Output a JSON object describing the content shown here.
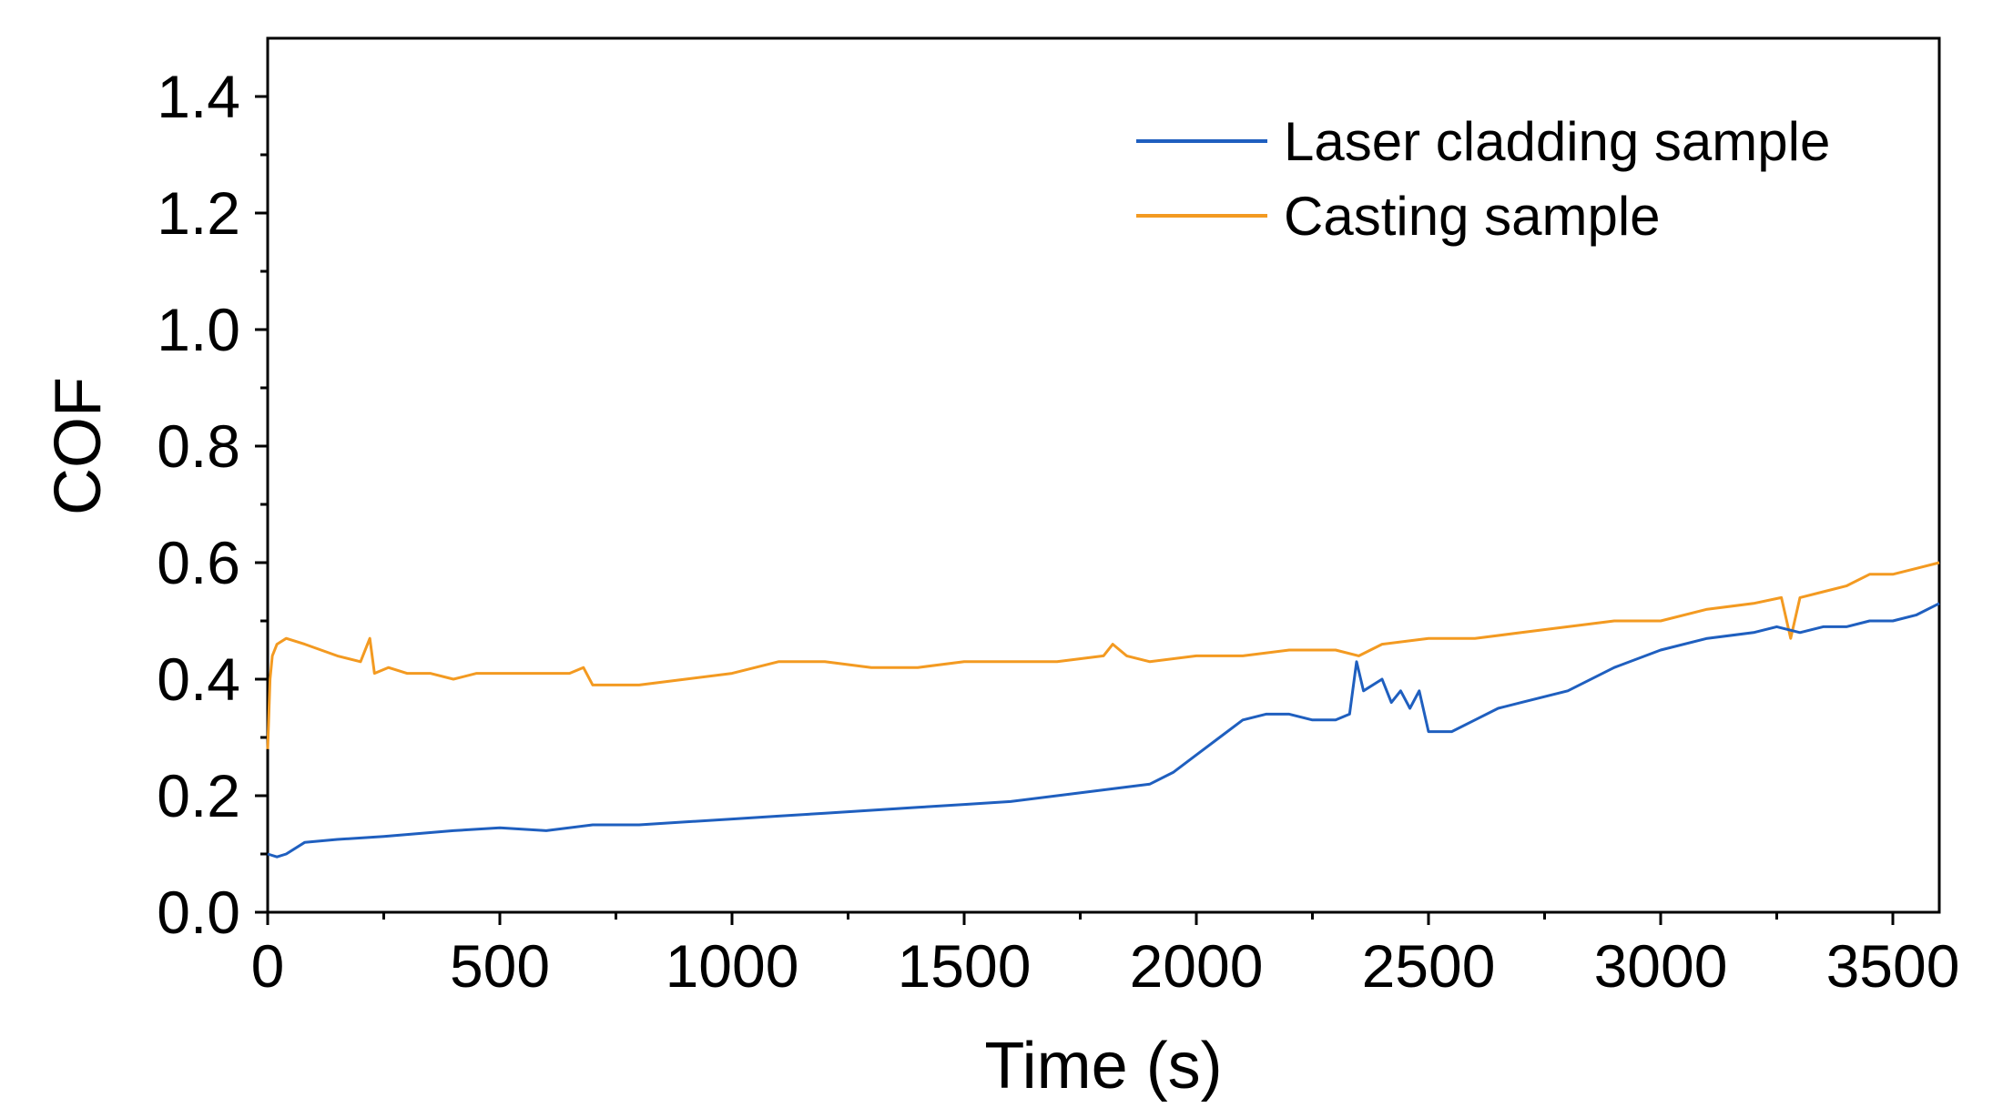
{
  "chart_data": {
    "type": "line",
    "title": "",
    "xlabel": "Time (s)",
    "ylabel": "COF",
    "xlim": [
      0,
      3600
    ],
    "ylim": [
      0.0,
      1.5
    ],
    "xticks": [
      0,
      500,
      1000,
      1500,
      2000,
      2500,
      3000,
      3500
    ],
    "xtick_labels": [
      "0",
      "500",
      "1000",
      "1500",
      "2000",
      "2500",
      "3000",
      "3500"
    ],
    "yticks": [
      0.0,
      0.2,
      0.4,
      0.6,
      0.8,
      1.0,
      1.2,
      1.4
    ],
    "ytick_labels": [
      "0.0",
      "0.2",
      "0.4",
      "0.6",
      "0.8",
      "1.0",
      "1.2",
      "1.4"
    ],
    "grid": false,
    "legend_position": "top-right",
    "series": [
      {
        "name": "Laser cladding sample",
        "color": "#1f5fbf",
        "x": [
          0,
          20,
          40,
          80,
          150,
          250,
          400,
          500,
          600,
          700,
          800,
          900,
          1000,
          1100,
          1200,
          1300,
          1400,
          1500,
          1600,
          1700,
          1800,
          1900,
          1950,
          2000,
          2050,
          2100,
          2150,
          2200,
          2250,
          2300,
          2330,
          2345,
          2360,
          2400,
          2420,
          2440,
          2460,
          2480,
          2500,
          2550,
          2600,
          2650,
          2700,
          2750,
          2800,
          2900,
          3000,
          3100,
          3200,
          3250,
          3300,
          3350,
          3400,
          3450,
          3500,
          3550,
          3600
        ],
        "y": [
          0.1,
          0.095,
          0.1,
          0.12,
          0.125,
          0.13,
          0.14,
          0.145,
          0.14,
          0.15,
          0.15,
          0.155,
          0.16,
          0.165,
          0.17,
          0.175,
          0.18,
          0.185,
          0.19,
          0.2,
          0.21,
          0.22,
          0.24,
          0.27,
          0.3,
          0.33,
          0.34,
          0.34,
          0.33,
          0.33,
          0.34,
          0.43,
          0.38,
          0.4,
          0.36,
          0.38,
          0.35,
          0.38,
          0.31,
          0.31,
          0.33,
          0.35,
          0.36,
          0.37,
          0.38,
          0.42,
          0.45,
          0.47,
          0.48,
          0.49,
          0.48,
          0.49,
          0.49,
          0.5,
          0.5,
          0.51,
          0.53
        ]
      },
      {
        "name": "Casting sample",
        "color": "#f39a21",
        "x": [
          0,
          5,
          10,
          20,
          40,
          80,
          150,
          200,
          220,
          230,
          260,
          300,
          350,
          400,
          450,
          500,
          550,
          600,
          650,
          680,
          700,
          750,
          800,
          900,
          1000,
          1100,
          1200,
          1300,
          1400,
          1500,
          1600,
          1700,
          1800,
          1820,
          1850,
          1900,
          2000,
          2100,
          2200,
          2300,
          2350,
          2400,
          2500,
          2600,
          2700,
          2800,
          2900,
          3000,
          3100,
          3200,
          3260,
          3280,
          3300,
          3350,
          3400,
          3450,
          3500,
          3550,
          3600
        ],
        "y": [
          0.28,
          0.4,
          0.44,
          0.46,
          0.47,
          0.46,
          0.44,
          0.43,
          0.47,
          0.41,
          0.42,
          0.41,
          0.41,
          0.4,
          0.41,
          0.41,
          0.41,
          0.41,
          0.41,
          0.42,
          0.39,
          0.39,
          0.39,
          0.4,
          0.41,
          0.43,
          0.43,
          0.42,
          0.42,
          0.43,
          0.43,
          0.43,
          0.44,
          0.46,
          0.44,
          0.43,
          0.44,
          0.44,
          0.45,
          0.45,
          0.44,
          0.46,
          0.47,
          0.47,
          0.48,
          0.49,
          0.5,
          0.5,
          0.52,
          0.53,
          0.54,
          0.47,
          0.54,
          0.55,
          0.56,
          0.58,
          0.58,
          0.59,
          0.6
        ]
      }
    ]
  }
}
